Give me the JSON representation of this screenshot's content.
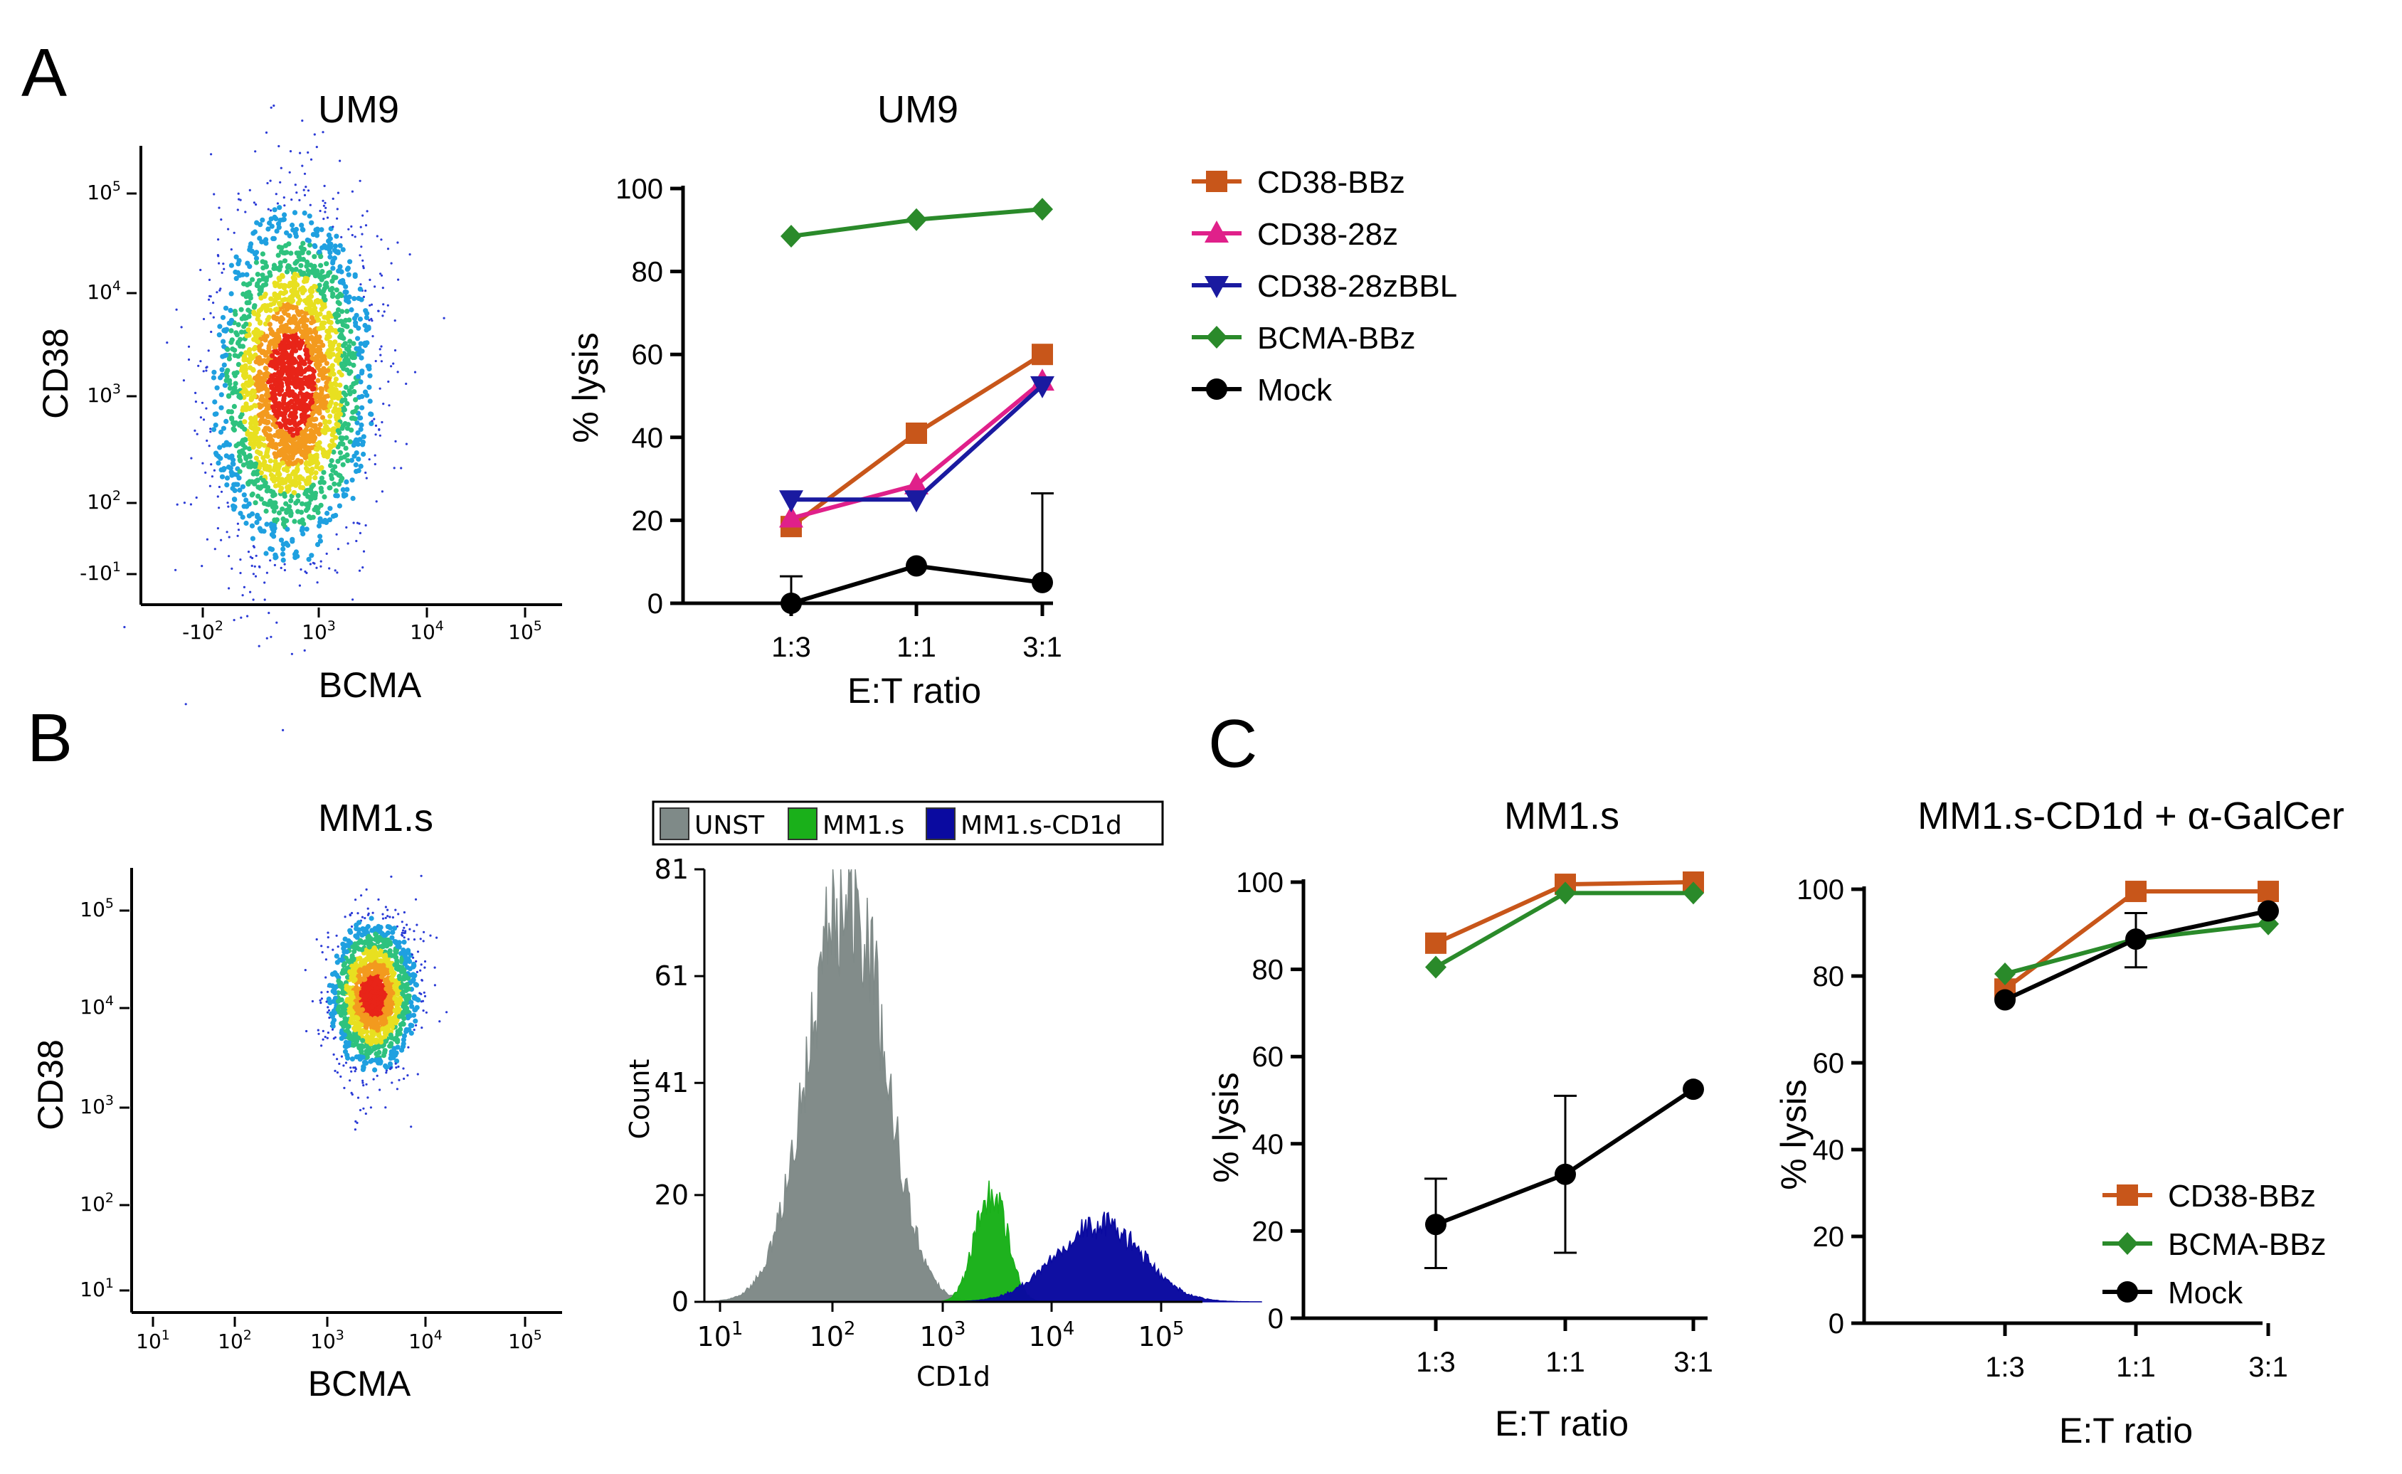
{
  "panels": {
    "A": "A",
    "B": "B",
    "C": "C"
  },
  "colors": {
    "CD38-BBz": "#c8561a",
    "CD38-28z": "#e0208a",
    "CD38-28zBBL": "#1a1aa0",
    "BCMA-BBz": "#2a8a2a",
    "Mock": "#000000",
    "UNST": "#7f8a88",
    "MM1.s": "#1ab01a",
    "MM1.s-CD1d": "#0a0aa0"
  },
  "flow_A": {
    "title": "UM9",
    "xlabel": "BCMA",
    "ylabel": "CD38",
    "x_ticks": [
      {
        "base": "-10",
        "exp": "2"
      },
      {
        "base": "10",
        "exp": "3"
      },
      {
        "base": "10",
        "exp": "4"
      },
      {
        "base": "10",
        "exp": "5"
      }
    ],
    "y_ticks": [
      {
        "base": "10",
        "exp": "5"
      },
      {
        "base": "10",
        "exp": "4"
      },
      {
        "base": "10",
        "exp": "3"
      },
      {
        "base": "10",
        "exp": "2"
      },
      {
        "base": "-10",
        "exp": "1"
      }
    ]
  },
  "flow_B": {
    "title": "MM1.s",
    "xlabel": "BCMA",
    "ylabel": "CD38",
    "x_ticks": [
      {
        "base": "10",
        "exp": "1"
      },
      {
        "base": "10",
        "exp": "2"
      },
      {
        "base": "10",
        "exp": "3"
      },
      {
        "base": "10",
        "exp": "4"
      },
      {
        "base": "10",
        "exp": "5"
      }
    ],
    "y_ticks": [
      {
        "base": "10",
        "exp": "5"
      },
      {
        "base": "10",
        "exp": "4"
      },
      {
        "base": "10",
        "exp": "3"
      },
      {
        "base": "10",
        "exp": "2"
      },
      {
        "base": "10",
        "exp": "1"
      }
    ]
  },
  "histogram_B": {
    "xlabel": "CD1d",
    "ylabel": "Count",
    "y_ticks": [
      "81",
      "61",
      "41",
      "20",
      "0"
    ],
    "x_ticks": [
      {
        "base": "10",
        "exp": "1"
      },
      {
        "base": "10",
        "exp": "2"
      },
      {
        "base": "10",
        "exp": "3"
      },
      {
        "base": "10",
        "exp": "4"
      },
      {
        "base": "10",
        "exp": "5"
      }
    ],
    "legend": [
      "UNST",
      "MM1.s",
      "MM1.s-CD1d"
    ]
  },
  "chart_data": [
    {
      "type": "line",
      "id": "A_lysis",
      "title": "UM9",
      "xlabel": "E:T ratio",
      "ylabel": "% lysis",
      "categories": [
        "1:3",
        "1:1",
        "3:1"
      ],
      "ylim": [
        0,
        100
      ],
      "yticks": [
        0,
        20,
        40,
        60,
        80,
        100
      ],
      "series": [
        {
          "name": "CD38-BBz",
          "marker": "square",
          "values": [
            18.5,
            41,
            60
          ]
        },
        {
          "name": "CD38-28z",
          "marker": "triangle-up",
          "values": [
            20.5,
            28.5,
            53.5
          ]
        },
        {
          "name": "CD38-28zBBL",
          "marker": "triangle-down",
          "values": [
            25,
            25,
            52.5
          ]
        },
        {
          "name": "BCMA-BBz",
          "marker": "diamond",
          "values": [
            88.5,
            92.5,
            95
          ]
        },
        {
          "name": "Mock",
          "marker": "circle",
          "values": [
            0,
            9,
            5
          ],
          "error_up": [
            6.5,
            0,
            21.5
          ],
          "error_down": [
            0,
            0,
            0
          ]
        }
      ],
      "legend": [
        "CD38-BBz",
        "CD38-28z",
        "CD38-28zBBL",
        "BCMA-BBz",
        "Mock"
      ]
    },
    {
      "type": "line",
      "id": "C_mm1s",
      "title": "MM1.s",
      "xlabel": "E:T ratio",
      "ylabel": "% lysis",
      "categories": [
        "1:3",
        "1:1",
        "3:1"
      ],
      "ylim": [
        0,
        100
      ],
      "yticks": [
        0,
        20,
        40,
        60,
        80,
        100
      ],
      "series": [
        {
          "name": "CD38-BBz",
          "marker": "square",
          "values": [
            86,
            99.5,
            100
          ]
        },
        {
          "name": "BCMA-BBz",
          "marker": "diamond",
          "values": [
            80.5,
            97.5,
            97.5
          ]
        },
        {
          "name": "Mock",
          "marker": "circle",
          "values": [
            21.5,
            33,
            52.5
          ],
          "error_up": [
            10.5,
            18,
            0
          ],
          "error_down": [
            10,
            18,
            0
          ]
        }
      ]
    },
    {
      "type": "line",
      "id": "C_cd1d",
      "title": "MM1.s-CD1d + α-GalCer",
      "xlabel": "E:T ratio",
      "ylabel": "% lysis",
      "categories": [
        "1:3",
        "1:1",
        "3:1"
      ],
      "ylim": [
        0,
        100
      ],
      "yticks": [
        0,
        20,
        40,
        60,
        80,
        100
      ],
      "series": [
        {
          "name": "CD38-BBz",
          "marker": "square",
          "values": [
            77,
            99.5,
            99.5
          ]
        },
        {
          "name": "BCMA-BBz",
          "marker": "diamond",
          "values": [
            80.5,
            88.5,
            92
          ]
        },
        {
          "name": "Mock",
          "marker": "circle",
          "values": [
            74.5,
            88.5,
            95
          ],
          "error_up": [
            0,
            6,
            0
          ],
          "error_down": [
            0,
            6.5,
            0
          ]
        }
      ],
      "legend": [
        "CD38-BBz",
        "BCMA-BBz",
        "Mock"
      ]
    }
  ]
}
